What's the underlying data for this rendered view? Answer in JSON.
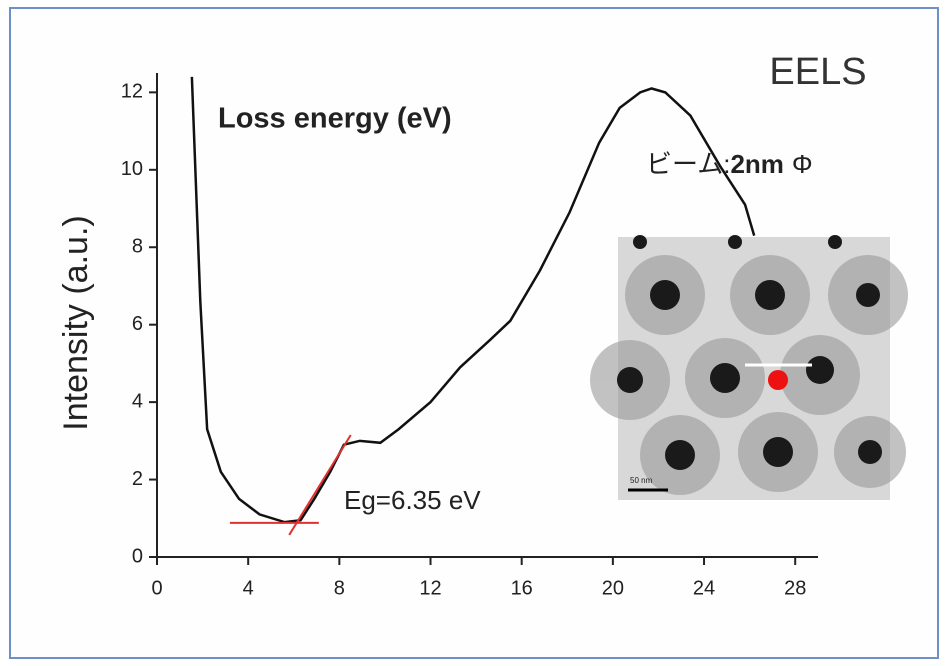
{
  "chart_data": {
    "type": "line",
    "x_label": "Loss energy (eV)",
    "y_label": "Intensity (a.u.)",
    "title": "EELS",
    "beam_label": {
      "prefix": "ビーム:",
      "size": "2nm",
      "symbol": "Φ"
    },
    "annotation": "Eg=6.35 eV",
    "inset_scale": "50 nm",
    "x": [
      1.53,
      1.9,
      2.2,
      2.8,
      3.6,
      4.5,
      5.6,
      6.3,
      6.9,
      7.6,
      8.2,
      8.9,
      9.8,
      10.6,
      12,
      13.3,
      14.6,
      15.5,
      16.8,
      18.1,
      19.4,
      20.3,
      21.2,
      21.7,
      22.3,
      23.4,
      24.7,
      25.8,
      26.2
    ],
    "series": [
      {
        "name": null,
        "color": "#111111",
        "values": [
          12.4,
          6.6,
          3.3,
          2.2,
          1.5,
          1.1,
          0.9,
          0.95,
          1.5,
          2.2,
          2.9,
          3.0,
          2.95,
          3.3,
          4.0,
          4.9,
          5.6,
          6.1,
          7.4,
          8.9,
          10.7,
          11.6,
          12.0,
          12.1,
          12.0,
          11.4,
          10.1,
          9.1,
          8.3
        ]
      }
    ],
    "annotation_lines": [
      {
        "x": [
          3.2,
          7.1
        ],
        "y": [
          0.88,
          0.88
        ],
        "color": "#e03030"
      },
      {
        "x": [
          5.8,
          8.5
        ],
        "y": [
          0.57,
          3.15
        ],
        "color": "#e03030"
      }
    ],
    "xlim": [
      0,
      29
    ],
    "ylim": [
      0,
      12.5
    ],
    "xticks": [
      0,
      4,
      8,
      12,
      16,
      20,
      24,
      28
    ],
    "yticks": [
      0,
      2,
      4,
      6,
      8,
      10,
      12
    ]
  }
}
